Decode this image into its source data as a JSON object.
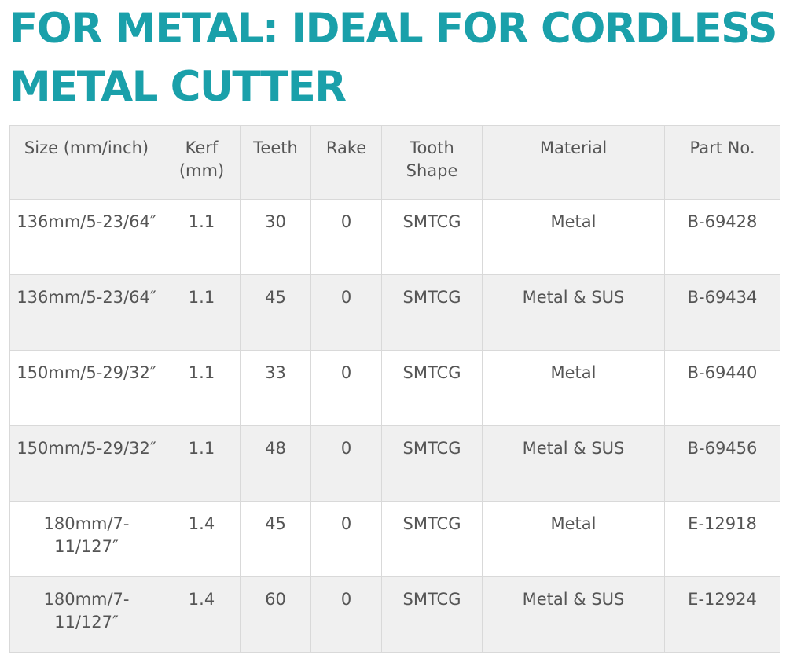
{
  "title": "FOR METAL: IDEAL FOR CORDLESS METAL CUTTER",
  "table": {
    "headers": [
      "Size (mm/inch)",
      "Kerf (mm)",
      "Teeth",
      "Rake",
      "Tooth Shape",
      "Material",
      "Part No."
    ],
    "rows": [
      [
        "136mm/5-23/64″",
        "1.1",
        "30",
        "0",
        "SMTCG",
        "Metal",
        "B-69428"
      ],
      [
        "136mm/5-23/64″",
        "1.1",
        "45",
        "0",
        "SMTCG",
        "Metal & SUS",
        "B-69434"
      ],
      [
        "150mm/5-29/32″",
        "1.1",
        "33",
        "0",
        "SMTCG",
        "Metal",
        "B-69440"
      ],
      [
        "150mm/5-29/32″",
        "1.1",
        "48",
        "0",
        "SMTCG",
        "Metal & SUS",
        "B-69456"
      ],
      [
        "180mm/7-11/127″",
        "1.4",
        "45",
        "0",
        "SMTCG",
        "Metal",
        "E-12918"
      ],
      [
        "180mm/7-11/127″",
        "1.4",
        "60",
        "0",
        "SMTCG",
        "Metal & SUS",
        "E-12924"
      ]
    ]
  },
  "colors": {
    "title": "#1aa0aa",
    "text": "#555555",
    "header_bg": "#f0f0f0",
    "stripe_bg": "#f0f0f0",
    "border": "#d9d9d9"
  }
}
